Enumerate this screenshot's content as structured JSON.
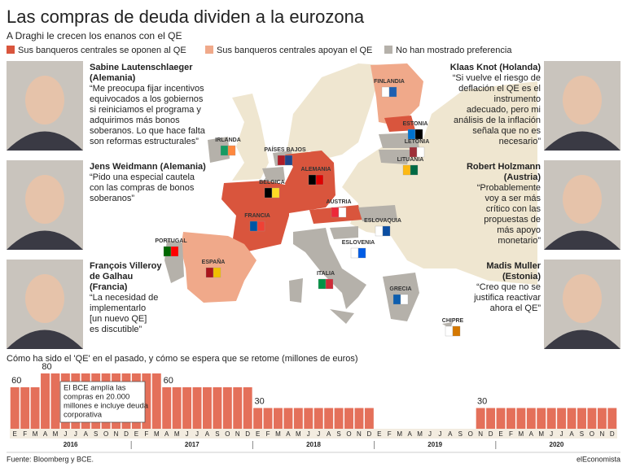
{
  "header": {
    "title": "Las compras de deuda dividen a la eurozona",
    "subtitle": "A Draghi le crecen los enanos con el QE"
  },
  "legend": [
    {
      "label": "Sus banqueros centrales se oponen al QE",
      "color": "#d9553d"
    },
    {
      "label": "Sus banqueros centrales apoyan el QE",
      "color": "#f0a98a"
    },
    {
      "label": "No han mostrado preferencia",
      "color": "#b5b1aa"
    }
  ],
  "quotes": [
    {
      "name": [
        "Sabine Lautenschlaeger",
        "(Alemania)"
      ],
      "text": [
        "“Me preocupa fijar incentivos",
        "equivocados a los gobiernos",
        "si reiniciamos el programa y",
        "adquirimos más bonos",
        "soberanos. Lo que hace falta",
        "son reformas estructurales”"
      ]
    },
    {
      "name": [
        "Jens Weidmann (Alemania)"
      ],
      "text": [
        "“Pido una especial cautela",
        "con las compras de bonos",
        "soberanos”"
      ]
    },
    {
      "name": [
        "François Villeroy",
        "de Galhau",
        "(Francia)"
      ],
      "text": [
        "“La necesidad de",
        "implementarlo",
        "[un nuevo QE]",
        "es discutible”"
      ]
    },
    {
      "name": [
        "Klaas Knot (Holanda)"
      ],
      "text": [
        "“Si vuelve el riesgo de",
        "deflación el QE es el",
        "instrumento",
        "adecuado, pero mi",
        "análisis de la inflación",
        "señala que no es",
        "necesario”"
      ]
    },
    {
      "name": [
        "Robert Holzmann",
        "(Austria)"
      ],
      "text": [
        "“Probablemente",
        "voy a ser más",
        "crítico con las",
        "propuestas de",
        "más apoyo",
        "monetario”"
      ]
    },
    {
      "name": [
        "Madis Muller",
        "(Estonia)"
      ],
      "text": [
        "“Creo que no se",
        "justifica reactivar",
        "ahora el QE”"
      ]
    }
  ],
  "map": {
    "countries": [
      "FINLANDIA",
      "IRLANDA",
      "PAÍSES BAJOS",
      "BÉLGICA",
      "ALEMANIA",
      "FRANCIA",
      "AUSTRIA",
      "ESTONIA",
      "LETONIA",
      "LITUANIA",
      "ESLOVAQUIA",
      "ESLOVENIA",
      "PORTUGAL",
      "ESPAÑA",
      "ITALIA",
      "GRECIA",
      "CHIPRE"
    ]
  },
  "chart_data": {
    "type": "bar",
    "title": "Cómo ha sido el 'QE' en el pasado, y cómo se espera que se retome (millones de euros)",
    "categories": [
      "E",
      "F",
      "M",
      "A",
      "M",
      "J",
      "J",
      "A",
      "S",
      "O",
      "N",
      "D",
      "E",
      "F",
      "M",
      "A",
      "M",
      "J",
      "J",
      "A",
      "S",
      "O",
      "N",
      "D",
      "E",
      "F",
      "M",
      "A",
      "M",
      "J",
      "J",
      "A",
      "S",
      "O",
      "N",
      "D",
      "E",
      "F",
      "M",
      "A",
      "M",
      "J",
      "J",
      "A",
      "S",
      "O",
      "N",
      "D",
      "E",
      "F",
      "M",
      "A",
      "M",
      "J",
      "J",
      "A",
      "S",
      "O",
      "N",
      "D"
    ],
    "values": [
      60,
      60,
      60,
      80,
      80,
      80,
      80,
      80,
      80,
      80,
      80,
      80,
      80,
      80,
      80,
      60,
      60,
      60,
      60,
      60,
      60,
      60,
      60,
      60,
      30,
      30,
      30,
      30,
      30,
      30,
      30,
      30,
      30,
      30,
      30,
      30,
      0,
      0,
      0,
      0,
      0,
      0,
      0,
      0,
      0,
      0,
      30,
      30,
      30,
      30,
      30,
      30,
      30,
      30,
      30,
      30,
      30,
      30,
      30,
      30
    ],
    "years": [
      "2016",
      "2017",
      "2018",
      "2019",
      "2020"
    ],
    "color": "#e4705a",
    "ylim": [
      0,
      80
    ],
    "annotation": [
      "El BCE amplía las",
      "compras en 20.000",
      "millones e incluye deuda",
      "corporativa"
    ]
  },
  "footer": {
    "source": "Fuente: Bloomberg y BCE.",
    "brand": "elEconomista"
  }
}
